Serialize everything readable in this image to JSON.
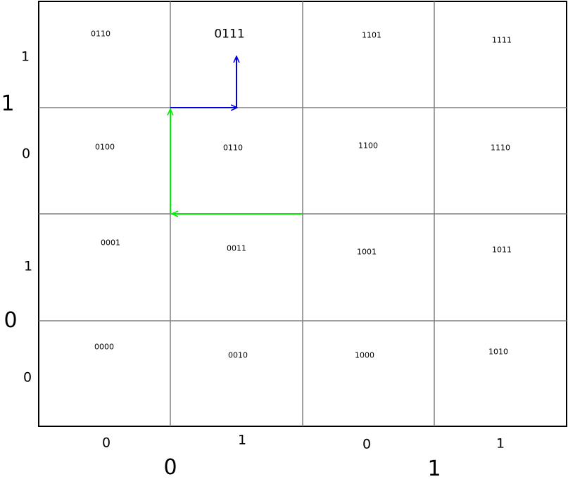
{
  "grid": {
    "cells": [
      [
        "0110",
        "0111",
        "1101",
        "1111"
      ],
      [
        "0100",
        "0110",
        "1100",
        "1110"
      ],
      [
        "0001",
        "0011",
        "1001",
        "1011"
      ],
      [
        "0000",
        "0010",
        "1000",
        "1010"
      ]
    ],
    "highlighted_cell": "0111",
    "line_color": "#808080",
    "border_color": "#000000"
  },
  "row_bits": [
    "1",
    "0",
    "1",
    "0"
  ],
  "row_groups": [
    "1",
    "0"
  ],
  "col_bits": [
    "0",
    "1",
    "0",
    "1"
  ],
  "col_groups": [
    "0",
    "1"
  ],
  "arrows": {
    "green": {
      "color": "#00ee00"
    },
    "blue": {
      "color": "#0000dd"
    }
  }
}
